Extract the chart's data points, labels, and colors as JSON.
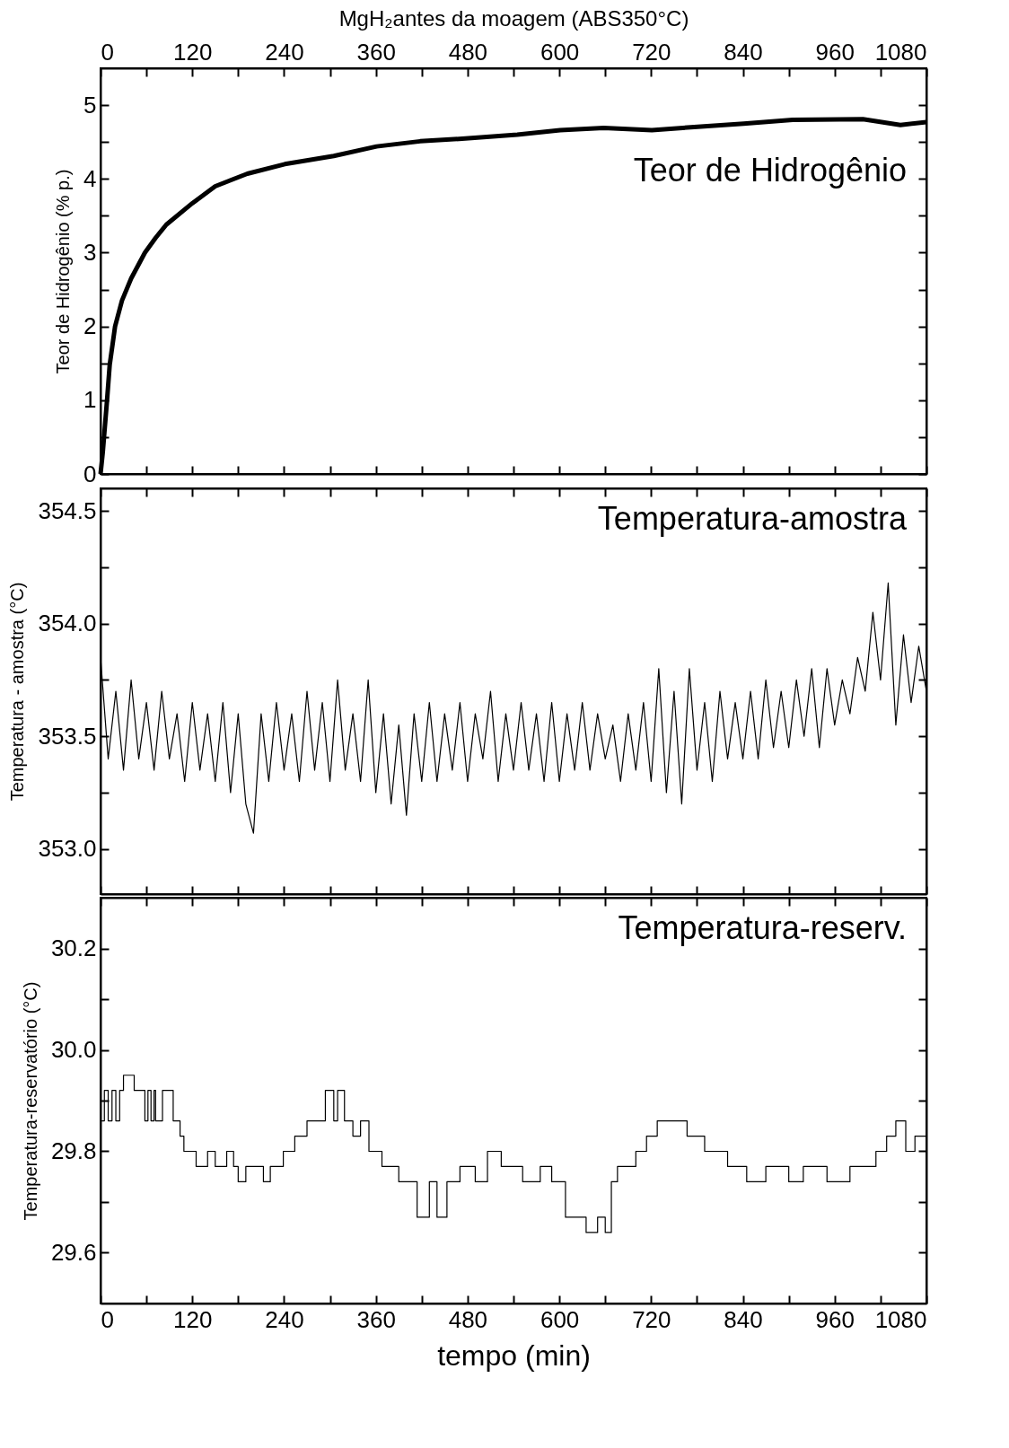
{
  "chart_data": [
    {
      "type": "line",
      "ylabel": "Teor de Hidrogênio (% p.)",
      "x2label": "MgH₂antes da moagem (ABS350°C)",
      "annotations": [
        "Teor de Hidrogênio"
      ],
      "x": [
        0,
        3,
        8.5,
        12,
        19,
        28,
        40,
        58,
        72,
        86,
        120,
        150,
        192,
        241,
        305,
        361,
        418,
        481,
        545,
        601,
        658,
        721,
        785,
        841,
        905,
        997,
        1046,
        1080
      ],
      "series": [
        {
          "color": "#000000",
          "values": [
            0,
            0.3,
            1.0,
            1.48,
            2.0,
            2.35,
            2.65,
            3.0,
            3.2,
            3.38,
            3.67,
            3.9,
            4.07,
            4.2,
            4.31,
            4.44,
            4.51,
            4.55,
            4.6,
            4.66,
            4.69,
            4.66,
            4.71,
            4.75,
            4.8,
            4.81,
            4.73,
            4.77
          ]
        }
      ],
      "xlim": [
        0,
        1080
      ],
      "xticks": [
        0,
        {
          "value": 60,
          "label": null
        },
        {
          "value": 120,
          "label": null
        },
        {
          "value": 180,
          "label": null
        },
        {
          "value": 240,
          "label": null
        },
        {
          "value": 300,
          "label": null
        },
        {
          "value": 360,
          "label": null
        },
        {
          "value": 420,
          "label": null
        },
        {
          "value": 480,
          "label": null
        },
        {
          "value": 540,
          "label": null
        },
        {
          "value": 600,
          "label": null
        },
        {
          "value": 660,
          "label": null
        },
        {
          "value": 720,
          "label": null
        },
        {
          "value": 780,
          "label": null
        },
        {
          "value": 840,
          "label": null
        },
        {
          "value": 900,
          "label": null
        },
        {
          "value": 960,
          "label": null
        },
        {
          "value": 1020,
          "label": null
        },
        {
          "value": 1080,
          "label": null
        }
      ],
      "x2lim": [
        0,
        1080
      ],
      "x2ticks": [
        0,
        {
          "value": 60,
          "label": null
        },
        120,
        {
          "value": 180,
          "label": null
        },
        240,
        {
          "value": 300,
          "label": null
        },
        360,
        {
          "value": 420,
          "label": null
        },
        480,
        {
          "value": 540,
          "label": null
        },
        600,
        {
          "value": 660,
          "label": null
        },
        720,
        {
          "value": 780,
          "label": null
        },
        840,
        {
          "value": 900,
          "label": null
        },
        960,
        {
          "value": 1020,
          "label": null
        },
        1080
      ],
      "ylim": [
        0,
        5.5
      ],
      "yticks": [
        0,
        {
          "value": 0.5,
          "label": null
        },
        1,
        {
          "value": 1.5,
          "label": null
        },
        2,
        {
          "value": 2.5,
          "label": null
        },
        3,
        {
          "value": 3.5,
          "label": null
        },
        4,
        {
          "value": 4.5,
          "label": null
        },
        5
      ],
      "tick_labels": "y"
    },
    {
      "type": "line",
      "ylabel": "Temperatura - amostra (°C)",
      "annotations": [
        "Temperatura-amostra"
      ],
      "x": [
        0,
        10,
        20,
        30,
        40,
        50,
        60,
        70,
        80,
        90,
        100,
        110,
        120,
        130,
        140,
        150,
        160,
        170,
        180,
        190,
        200,
        210,
        220,
        230,
        240,
        250,
        260,
        270,
        280,
        290,
        300,
        310,
        320,
        330,
        340,
        350,
        360,
        370,
        380,
        390,
        400,
        410,
        420,
        430,
        440,
        450,
        460,
        470,
        480,
        490,
        500,
        510,
        520,
        530,
        540,
        550,
        560,
        570,
        580,
        590,
        600,
        610,
        620,
        630,
        640,
        650,
        660,
        670,
        680,
        690,
        700,
        710,
        720,
        730,
        740,
        750,
        760,
        770,
        780,
        790,
        800,
        810,
        820,
        830,
        840,
        850,
        860,
        870,
        880,
        890,
        900,
        910,
        920,
        930,
        940,
        950,
        960,
        970,
        980,
        990,
        1000,
        1010,
        1020,
        1030,
        1040,
        1050,
        1060,
        1070,
        1080
      ],
      "series": [
        {
          "color": "#000000",
          "values": [
            353.85,
            353.4,
            353.7,
            353.35,
            353.75,
            353.4,
            353.65,
            353.35,
            353.7,
            353.4,
            353.6,
            353.3,
            353.65,
            353.35,
            353.6,
            353.3,
            353.65,
            353.25,
            353.6,
            353.2,
            353.07,
            353.6,
            353.3,
            353.65,
            353.35,
            353.6,
            353.3,
            353.7,
            353.35,
            353.65,
            353.3,
            353.75,
            353.35,
            353.6,
            353.3,
            353.75,
            353.25,
            353.6,
            353.2,
            353.55,
            353.15,
            353.6,
            353.3,
            353.65,
            353.3,
            353.6,
            353.35,
            353.65,
            353.3,
            353.6,
            353.4,
            353.7,
            353.3,
            353.6,
            353.35,
            353.65,
            353.35,
            353.6,
            353.3,
            353.65,
            353.3,
            353.6,
            353.35,
            353.65,
            353.35,
            353.6,
            353.4,
            353.55,
            353.3,
            353.6,
            353.35,
            353.65,
            353.3,
            353.8,
            353.25,
            353.7,
            353.2,
            353.8,
            353.35,
            353.65,
            353.3,
            353.7,
            353.4,
            353.65,
            353.4,
            353.7,
            353.4,
            353.75,
            353.45,
            353.7,
            353.45,
            353.75,
            353.5,
            353.8,
            353.45,
            353.8,
            353.55,
            353.75,
            353.6,
            353.85,
            353.7,
            354.05,
            353.75,
            354.18,
            353.55,
            353.95,
            353.65,
            353.9,
            353.7
          ]
        }
      ],
      "xlim": [
        0,
        1080
      ],
      "xticks": [
        0,
        {
          "value": 60,
          "label": null
        },
        {
          "value": 120,
          "label": null
        },
        {
          "value": 180,
          "label": null
        },
        {
          "value": 240,
          "label": null
        },
        {
          "value": 300,
          "label": null
        },
        {
          "value": 360,
          "label": null
        },
        {
          "value": 420,
          "label": null
        },
        {
          "value": 480,
          "label": null
        },
        {
          "value": 540,
          "label": null
        },
        {
          "value": 600,
          "label": null
        },
        {
          "value": 660,
          "label": null
        },
        {
          "value": 720,
          "label": null
        },
        {
          "value": 780,
          "label": null
        },
        {
          "value": 840,
          "label": null
        },
        {
          "value": 900,
          "label": null
        },
        {
          "value": 960,
          "label": null
        },
        {
          "value": 1020,
          "label": null
        },
        {
          "value": 1080,
          "label": null
        }
      ],
      "ylim": [
        352.8,
        354.6
      ],
      "yticks": [
        {
          "value": 353,
          "label": "353.0"
        },
        {
          "value": 353.25,
          "label": null
        },
        353.5,
        {
          "value": 353.75,
          "label": null
        },
        {
          "value": 354,
          "label": "354.0"
        },
        {
          "value": 354.25,
          "label": null
        },
        354.5
      ],
      "tick_labels": "y"
    },
    {
      "type": "step",
      "ylabel": "Temperatura-reservatório (°C)",
      "xlabel": "tempo (min)",
      "annotations": [
        "Temperatura-reserv."
      ],
      "x": [
        0,
        5,
        10,
        15,
        20,
        25,
        30,
        44,
        58,
        62,
        66,
        70,
        72,
        81,
        95,
        104,
        109,
        121,
        125,
        140,
        150,
        165,
        174,
        180,
        190,
        200,
        213,
        222,
        239,
        254,
        270,
        294,
        305,
        310,
        319,
        330,
        340,
        351,
        368,
        390,
        414,
        430,
        440,
        453,
        470,
        490,
        506,
        524,
        552,
        560,
        575,
        590,
        608,
        635,
        650,
        660,
        668,
        676,
        700,
        714,
        728,
        767,
        790,
        820,
        845,
        870,
        900,
        919,
        950,
        980,
        1014,
        1028,
        1040,
        1053,
        1065,
        1080
      ],
      "series": [
        {
          "color": "#000000",
          "values": [
            29.86,
            29.92,
            29.86,
            29.92,
            29.86,
            29.92,
            29.95,
            29.92,
            29.86,
            29.92,
            29.86,
            29.92,
            29.86,
            29.92,
            29.86,
            29.83,
            29.8,
            29.8,
            29.77,
            29.8,
            29.77,
            29.8,
            29.77,
            29.74,
            29.77,
            29.77,
            29.74,
            29.77,
            29.8,
            29.83,
            29.86,
            29.92,
            29.86,
            29.92,
            29.86,
            29.83,
            29.86,
            29.8,
            29.77,
            29.74,
            29.67,
            29.74,
            29.67,
            29.74,
            29.77,
            29.74,
            29.8,
            29.77,
            29.74,
            29.74,
            29.77,
            29.74,
            29.67,
            29.64,
            29.67,
            29.64,
            29.74,
            29.77,
            29.8,
            29.83,
            29.86,
            29.83,
            29.8,
            29.77,
            29.74,
            29.77,
            29.74,
            29.77,
            29.74,
            29.77,
            29.8,
            29.83,
            29.86,
            29.8,
            29.83,
            29.8
          ]
        }
      ],
      "xlim": [
        0,
        1080
      ],
      "xticks": [
        0,
        {
          "value": 60,
          "label": null
        },
        120,
        {
          "value": 180,
          "label": null
        },
        240,
        {
          "value": 300,
          "label": null
        },
        360,
        {
          "value": 420,
          "label": null
        },
        480,
        {
          "value": 540,
          "label": null
        },
        600,
        {
          "value": 660,
          "label": null
        },
        720,
        {
          "value": 780,
          "label": null
        },
        840,
        {
          "value": 900,
          "label": null
        },
        960,
        {
          "value": 1020,
          "label": null
        },
        1080
      ],
      "ylim": [
        29.5,
        30.3
      ],
      "yticks": [
        29.6,
        {
          "value": 29.7,
          "label": null
        },
        29.8,
        {
          "value": 29.9,
          "label": null
        },
        {
          "value": 30,
          "label": "30.0"
        },
        {
          "value": 30.1,
          "label": null
        },
        30.2
      ]
    }
  ]
}
